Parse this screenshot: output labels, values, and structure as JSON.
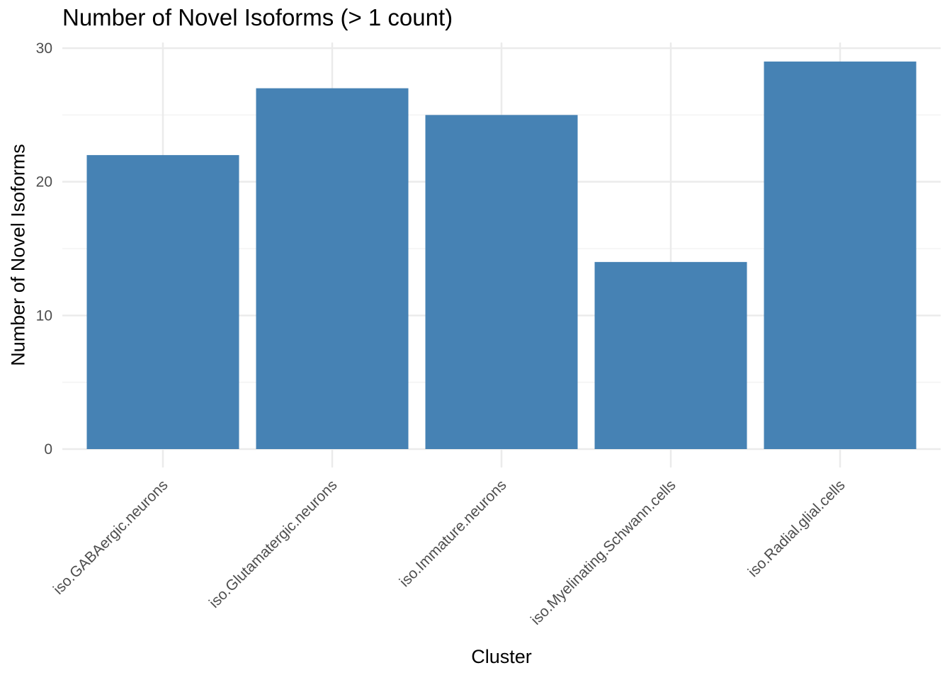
{
  "colors": {
    "bar": "#4682b4",
    "grid_major": "#ebebeb",
    "grid_minor": "#f3f3f3",
    "tick_text": "#4d4d4d"
  },
  "chart_data": {
    "type": "bar",
    "title": "Number of Novel Isoforms (> 1 count)",
    "xlabel": "Cluster",
    "ylabel": "Number of Novel Isoforms",
    "categories": [
      "iso.GABAergic.neurons",
      "iso.Glutamatergic.neurons",
      "iso.Immature.neurons",
      "iso.Myelinating.Schwann.cells",
      "iso.Radial.glial.cells"
    ],
    "values": [
      22,
      27,
      25,
      14,
      29
    ],
    "ylim": [
      0,
      30
    ],
    "yticks": [
      0,
      10,
      20,
      30
    ],
    "grid": true,
    "legend": "none"
  }
}
